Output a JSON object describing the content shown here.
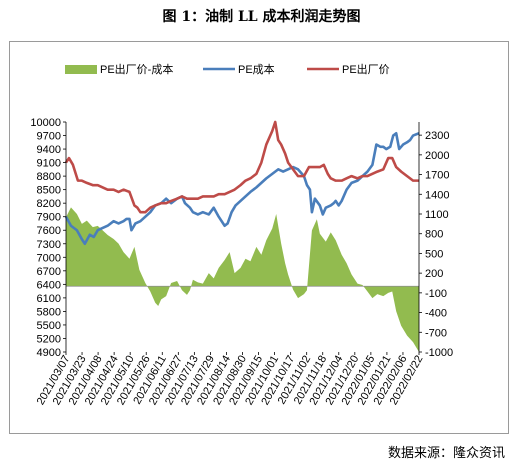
{
  "figure": {
    "title": "图 1：油制 LL 成本利润走势图",
    "source": "数据来源：隆众资讯"
  },
  "chart_data": {
    "type": "line",
    "legend_position": "top",
    "grid": false,
    "left_axis": {
      "min": 4900,
      "max": 10000,
      "step": 300
    },
    "right_axis": {
      "min": -1000,
      "max": 2500,
      "step": 300,
      "ticks": [
        -1000,
        -700,
        -400,
        -100,
        200,
        500,
        800,
        1100,
        1400,
        1700,
        2000,
        2300
      ]
    },
    "x_tick_labels": [
      "2021/03/07",
      "2021/03/23",
      "2021/04/08",
      "2021/04/24",
      "2021/05/10",
      "2021/05/26",
      "2021/06/11",
      "2021/06/27",
      "2021/07/13",
      "2021/07/29",
      "2021/08/14",
      "2021/08/30",
      "2021/09/15",
      "2021/10/01",
      "2021/10/17",
      "2021/11/02",
      "2021/11/18",
      "2021/12/04",
      "2021/12/20",
      "2022/01/05",
      "2022/01/21",
      "2022/02/06",
      "2022/02/22"
    ],
    "x_range": [
      "2021-03-07",
      "2022-02-26"
    ],
    "series": [
      {
        "name": "PE出厂价-成本",
        "kind": "area",
        "axis": "right",
        "color": "#92bb4f",
        "points": [
          [
            "2021-03-07",
            1050
          ],
          [
            "2021-03-12",
            1200
          ],
          [
            "2021-03-18",
            1100
          ],
          [
            "2021-03-23",
            950
          ],
          [
            "2021-03-28",
            1000
          ],
          [
            "2021-04-03",
            900
          ],
          [
            "2021-04-08",
            920
          ],
          [
            "2021-04-13",
            850
          ],
          [
            "2021-04-18",
            780
          ],
          [
            "2021-04-24",
            720
          ],
          [
            "2021-04-29",
            650
          ],
          [
            "2021-05-04",
            520
          ],
          [
            "2021-05-10",
            420
          ],
          [
            "2021-05-15",
            600
          ],
          [
            "2021-05-20",
            250
          ],
          [
            "2021-05-26",
            50
          ],
          [
            "2021-05-31",
            -80
          ],
          [
            "2021-06-05",
            -250
          ],
          [
            "2021-06-08",
            -300
          ],
          [
            "2021-06-11",
            -200
          ],
          [
            "2021-06-16",
            -150
          ],
          [
            "2021-06-21",
            50
          ],
          [
            "2021-06-27",
            80
          ],
          [
            "2021-07-02",
            -60
          ],
          [
            "2021-07-07",
            -130
          ],
          [
            "2021-07-10",
            -60
          ],
          [
            "2021-07-13",
            100
          ],
          [
            "2021-07-18",
            60
          ],
          [
            "2021-07-23",
            40
          ],
          [
            "2021-07-29",
            200
          ],
          [
            "2021-08-03",
            120
          ],
          [
            "2021-08-08",
            280
          ],
          [
            "2021-08-14",
            400
          ],
          [
            "2021-08-19",
            520
          ],
          [
            "2021-08-24",
            200
          ],
          [
            "2021-08-30",
            280
          ],
          [
            "2021-09-04",
            420
          ],
          [
            "2021-09-09",
            380
          ],
          [
            "2021-09-15",
            600
          ],
          [
            "2021-09-20",
            480
          ],
          [
            "2021-09-25",
            700
          ],
          [
            "2021-10-01",
            880
          ],
          [
            "2021-10-05",
            1100
          ],
          [
            "2021-10-10",
            650
          ],
          [
            "2021-10-14",
            350
          ],
          [
            "2021-10-17",
            180
          ],
          [
            "2021-10-22",
            -50
          ],
          [
            "2021-10-27",
            -180
          ],
          [
            "2021-11-02",
            -120
          ],
          [
            "2021-11-05",
            -60
          ],
          [
            "2021-11-10",
            850
          ],
          [
            "2021-11-15",
            1020
          ],
          [
            "2021-11-18",
            800
          ],
          [
            "2021-11-24",
            680
          ],
          [
            "2021-11-29",
            820
          ],
          [
            "2021-12-04",
            700
          ],
          [
            "2021-12-10",
            480
          ],
          [
            "2021-12-15",
            350
          ],
          [
            "2021-12-20",
            180
          ],
          [
            "2021-12-26",
            40
          ],
          [
            "2021-12-31",
            20
          ],
          [
            "2022-01-05",
            -80
          ],
          [
            "2022-01-10",
            -180
          ],
          [
            "2022-01-15",
            -120
          ],
          [
            "2022-01-21",
            -150
          ],
          [
            "2022-01-26",
            -100
          ],
          [
            "2022-01-30",
            -80
          ],
          [
            "2022-02-03",
            -380
          ],
          [
            "2022-02-08",
            -600
          ],
          [
            "2022-02-14",
            -750
          ],
          [
            "2022-02-20",
            -850
          ],
          [
            "2022-02-26",
            -1000
          ]
        ]
      },
      {
        "name": "PE成本",
        "kind": "line",
        "axis": "left",
        "color": "#4a7ebb",
        "points": [
          [
            "2021-03-07",
            7900
          ],
          [
            "2021-03-12",
            7700
          ],
          [
            "2021-03-18",
            7600
          ],
          [
            "2021-03-23",
            7400
          ],
          [
            "2021-03-26",
            7300
          ],
          [
            "2021-03-31",
            7500
          ],
          [
            "2021-04-04",
            7450
          ],
          [
            "2021-04-08",
            7600
          ],
          [
            "2021-04-13",
            7650
          ],
          [
            "2021-04-18",
            7700
          ],
          [
            "2021-04-24",
            7800
          ],
          [
            "2021-04-29",
            7750
          ],
          [
            "2021-05-04",
            7800
          ],
          [
            "2021-05-07",
            7850
          ],
          [
            "2021-05-10",
            7850
          ],
          [
            "2021-05-12",
            7600
          ],
          [
            "2021-05-16",
            7750
          ],
          [
            "2021-05-21",
            7800
          ],
          [
            "2021-05-26",
            7900
          ],
          [
            "2021-05-31",
            8000
          ],
          [
            "2021-06-05",
            8150
          ],
          [
            "2021-06-11",
            8200
          ],
          [
            "2021-06-16",
            8300
          ],
          [
            "2021-06-21",
            8200
          ],
          [
            "2021-06-27",
            8300
          ],
          [
            "2021-07-02",
            8350
          ],
          [
            "2021-07-05",
            8200
          ],
          [
            "2021-07-10",
            8100
          ],
          [
            "2021-07-13",
            8000
          ],
          [
            "2021-07-18",
            7950
          ],
          [
            "2021-07-23",
            8000
          ],
          [
            "2021-07-29",
            7950
          ],
          [
            "2021-08-03",
            8100
          ],
          [
            "2021-08-08",
            7900
          ],
          [
            "2021-08-14",
            7700
          ],
          [
            "2021-08-17",
            7750
          ],
          [
            "2021-08-21",
            8000
          ],
          [
            "2021-08-25",
            8150
          ],
          [
            "2021-08-30",
            8250
          ],
          [
            "2021-09-04",
            8350
          ],
          [
            "2021-09-09",
            8450
          ],
          [
            "2021-09-15",
            8550
          ],
          [
            "2021-09-20",
            8650
          ],
          [
            "2021-09-25",
            8750
          ],
          [
            "2021-10-01",
            8850
          ],
          [
            "2021-10-07",
            8950
          ],
          [
            "2021-10-12",
            8900
          ],
          [
            "2021-10-17",
            8950
          ],
          [
            "2021-10-22",
            9000
          ],
          [
            "2021-10-27",
            8950
          ],
          [
            "2021-11-02",
            8800
          ],
          [
            "2021-11-05",
            8600
          ],
          [
            "2021-11-08",
            8500
          ],
          [
            "2021-11-10",
            8000
          ],
          [
            "2021-11-13",
            8300
          ],
          [
            "2021-11-18",
            8150
          ],
          [
            "2021-11-21",
            7950
          ],
          [
            "2021-11-24",
            8100
          ],
          [
            "2021-11-29",
            8150
          ],
          [
            "2021-12-02",
            8200
          ],
          [
            "2021-12-04",
            8250
          ],
          [
            "2021-12-07",
            8150
          ],
          [
            "2021-12-10",
            8250
          ],
          [
            "2021-12-15",
            8500
          ],
          [
            "2021-12-20",
            8650
          ],
          [
            "2021-12-26",
            8700
          ],
          [
            "2021-12-31",
            8800
          ],
          [
            "2022-01-05",
            8900
          ],
          [
            "2022-01-10",
            9050
          ],
          [
            "2022-01-14",
            9500
          ],
          [
            "2022-01-18",
            9450
          ],
          [
            "2022-01-21",
            9450
          ],
          [
            "2022-01-24",
            9400
          ],
          [
            "2022-01-28",
            9450
          ],
          [
            "2022-01-31",
            9700
          ],
          [
            "2022-02-03",
            9750
          ],
          [
            "2022-02-06",
            9400
          ],
          [
            "2022-02-10",
            9500
          ],
          [
            "2022-02-14",
            9550
          ],
          [
            "2022-02-17",
            9600
          ],
          [
            "2022-02-20",
            9700
          ],
          [
            "2022-02-26",
            9750
          ]
        ]
      },
      {
        "name": "PE出厂价",
        "kind": "line",
        "axis": "left",
        "color": "#be4b48",
        "points": [
          [
            "2021-03-07",
            9100
          ],
          [
            "2021-03-10",
            9200
          ],
          [
            "2021-03-14",
            9050
          ],
          [
            "2021-03-19",
            8700
          ],
          [
            "2021-03-23",
            8700
          ],
          [
            "2021-03-28",
            8650
          ],
          [
            "2021-04-03",
            8600
          ],
          [
            "2021-04-08",
            8600
          ],
          [
            "2021-04-13",
            8550
          ],
          [
            "2021-04-18",
            8500
          ],
          [
            "2021-04-24",
            8500
          ],
          [
            "2021-04-29",
            8450
          ],
          [
            "2021-05-04",
            8500
          ],
          [
            "2021-05-10",
            8450
          ],
          [
            "2021-05-15",
            8150
          ],
          [
            "2021-05-18",
            8100
          ],
          [
            "2021-05-21",
            8000
          ],
          [
            "2021-05-26",
            8000
          ],
          [
            "2021-05-31",
            8100
          ],
          [
            "2021-06-05",
            8150
          ],
          [
            "2021-06-11",
            8200
          ],
          [
            "2021-06-16",
            8200
          ],
          [
            "2021-06-21",
            8250
          ],
          [
            "2021-06-27",
            8300
          ],
          [
            "2021-07-02",
            8350
          ],
          [
            "2021-07-07",
            8300
          ],
          [
            "2021-07-13",
            8300
          ],
          [
            "2021-07-18",
            8300
          ],
          [
            "2021-07-23",
            8350
          ],
          [
            "2021-07-29",
            8350
          ],
          [
            "2021-08-03",
            8350
          ],
          [
            "2021-08-08",
            8400
          ],
          [
            "2021-08-14",
            8400
          ],
          [
            "2021-08-19",
            8450
          ],
          [
            "2021-08-24",
            8500
          ],
          [
            "2021-08-30",
            8600
          ],
          [
            "2021-09-04",
            8700
          ],
          [
            "2021-09-09",
            8750
          ],
          [
            "2021-09-15",
            8850
          ],
          [
            "2021-09-20",
            9100
          ],
          [
            "2021-09-25",
            9500
          ],
          [
            "2021-10-01",
            9800
          ],
          [
            "2021-10-04",
            10000
          ],
          [
            "2021-10-07",
            9600
          ],
          [
            "2021-10-10",
            9500
          ],
          [
            "2021-10-14",
            9300
          ],
          [
            "2021-10-17",
            9100
          ],
          [
            "2021-10-22",
            8950
          ],
          [
            "2021-10-27",
            8800
          ],
          [
            "2021-11-02",
            8800
          ],
          [
            "2021-11-07",
            9000
          ],
          [
            "2021-11-12",
            9000
          ],
          [
            "2021-11-18",
            9000
          ],
          [
            "2021-11-22",
            9050
          ],
          [
            "2021-11-26",
            8850
          ],
          [
            "2021-11-29",
            8750
          ],
          [
            "2021-12-04",
            8700
          ],
          [
            "2021-12-10",
            8700
          ],
          [
            "2021-12-15",
            8750
          ],
          [
            "2021-12-20",
            8800
          ],
          [
            "2021-12-26",
            8750
          ],
          [
            "2021-12-31",
            8800
          ],
          [
            "2022-01-05",
            8800
          ],
          [
            "2022-01-10",
            8850
          ],
          [
            "2022-01-15",
            8900
          ],
          [
            "2022-01-21",
            8950
          ],
          [
            "2022-01-26",
            9200
          ],
          [
            "2022-01-30",
            9200
          ],
          [
            "2022-02-03",
            9000
          ],
          [
            "2022-02-08",
            8900
          ],
          [
            "2022-02-14",
            8800
          ],
          [
            "2022-02-20",
            8700
          ],
          [
            "2022-02-26",
            8700
          ]
        ]
      }
    ]
  }
}
